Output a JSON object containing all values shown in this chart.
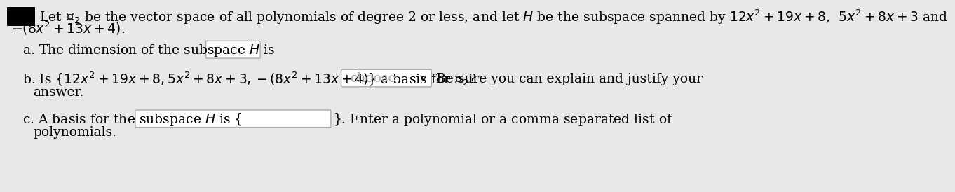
{
  "bg_color": "#e8e8e8",
  "white": "#ffffff",
  "black_box_color": "#000000",
  "text_color": "#000000",
  "box_border": "#aaaaaa",
  "box_fill": "#ffffff",
  "choose_text_color": "#aaaaaa",
  "title_line1": "Let $\\mathcal{P}_2$ be the vector space of all polynomials of degree 2 or less, and let $H$ be the subspace spanned by $12x^2 + 19x + 8$,  $5x^2 + 8x + 3$ and",
  "title_line2": "$-(8x^2 + 13x + 4)$.",
  "part_a_label": "a. The dimension of the subspace $H$ is",
  "part_a_suffix": ".",
  "part_b_label_1": "b. Is $\\{12x^2 + 19x + 8, 5x^2 + 8x + 3, -(8x^2 + 13x + 4)\\}$ a basis for $\\mathcal{P}_2$?",
  "part_b_choose": "choose",
  "part_b_arrow": "⌄",
  "part_b_label_2": "Be sure you can explain and justify your",
  "part_b_label_3": "answer.",
  "part_c_label_pre": "c. A basis for the subspace $H$ is $\\{$",
  "part_c_label_post": "$\\}$. Enter a polynomial or a comma separated list of",
  "part_c_label_3": "polynomials.",
  "font_size": 13.5
}
